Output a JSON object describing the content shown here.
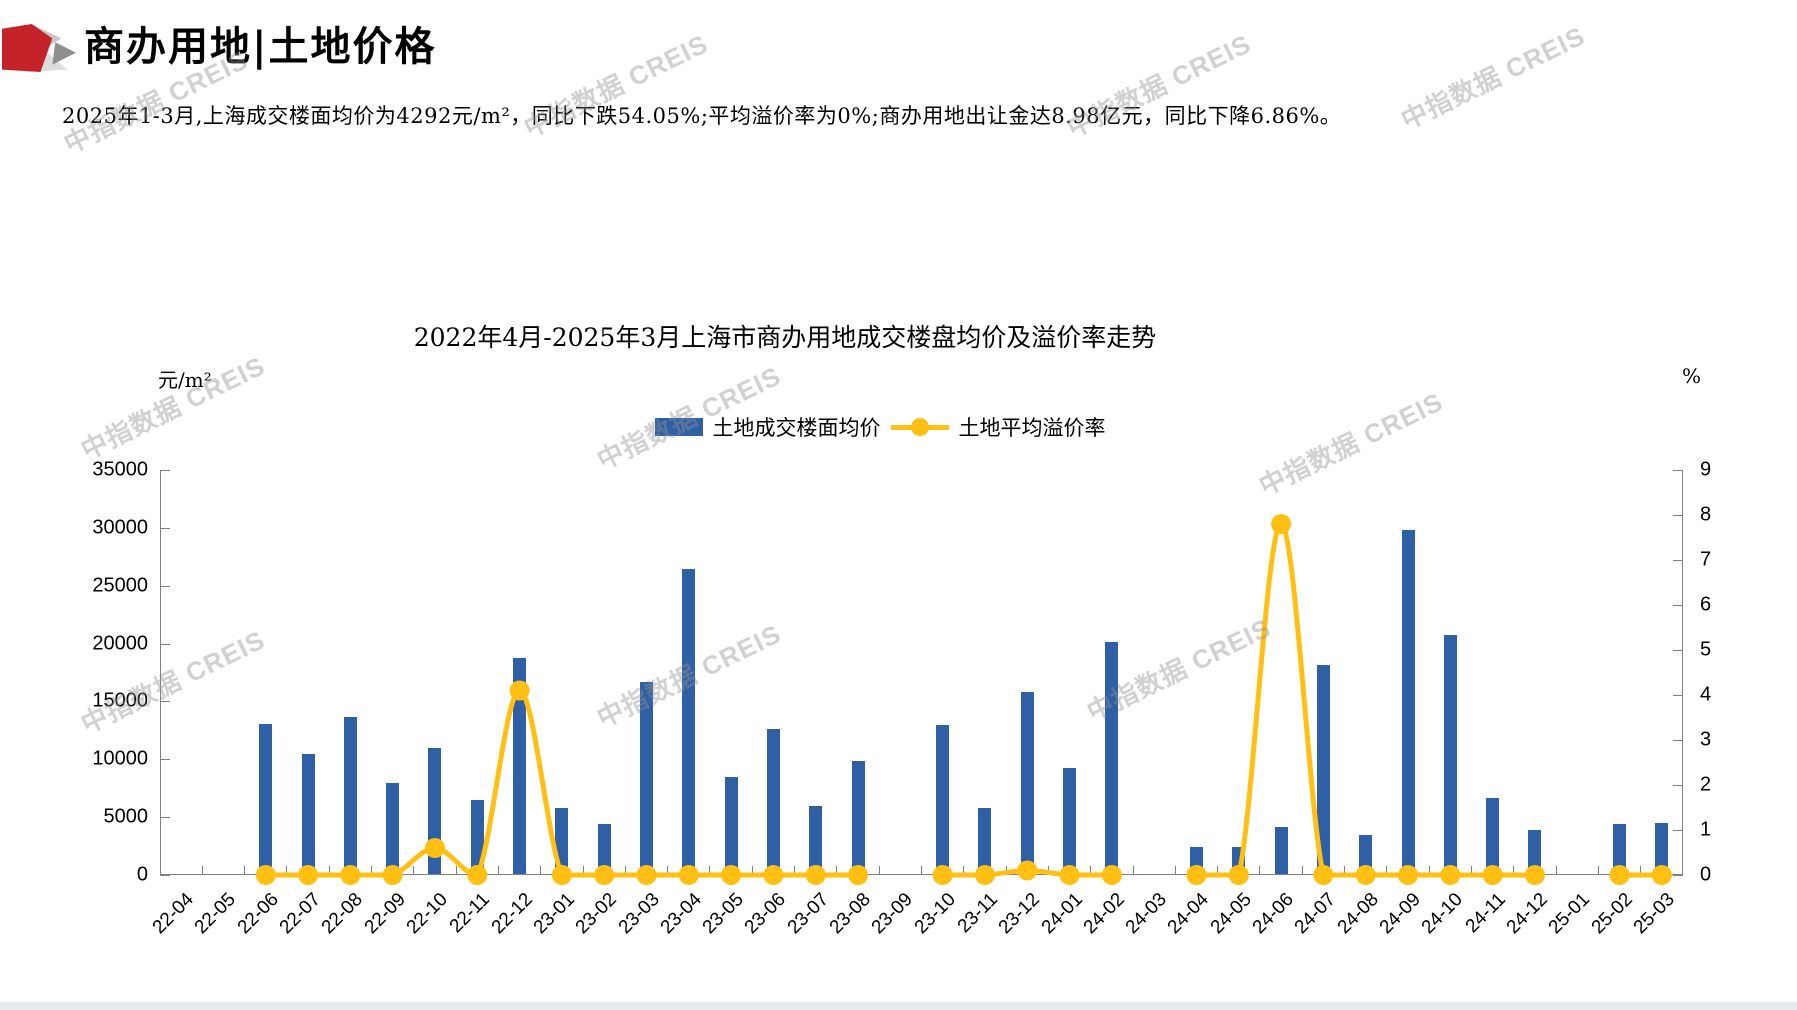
{
  "header": {
    "title": "商办用地|土地价格"
  },
  "summary": "2025年1-3月,上海成交楼面均价为4292元/m²，同比下跌54.05%;平均溢价率为0%;商办用地出让金达8.98亿元，同比下降6.86%。",
  "watermark": {
    "text": "中指数据 CREIS"
  },
  "colors": {
    "bar_blue": "#2f5fa5",
    "line_yellow": "#ffc013",
    "axis_gray": "#808080",
    "logo_red": "#c4232a"
  },
  "chart_data": {
    "type": "combo",
    "title": "2022年4月-2025年3月上海市商办用地成交楼盘均价及溢价率走势",
    "categories": [
      "22-04",
      "22-05",
      "22-06",
      "22-07",
      "22-08",
      "22-09",
      "22-10",
      "22-11",
      "22-12",
      "23-01",
      "23-02",
      "23-03",
      "23-04",
      "23-05",
      "23-06",
      "23-07",
      "23-08",
      "23-09",
      "23-10",
      "23-11",
      "23-12",
      "24-01",
      "24-02",
      "24-03",
      "24-04",
      "24-05",
      "24-06",
      "24-07",
      "24-08",
      "24-09",
      "24-10",
      "24-11",
      "24-12",
      "25-01",
      "25-02",
      "25-03"
    ],
    "series": [
      {
        "name": "土地成交楼面均价",
        "type": "bar",
        "axis": "left",
        "color": "#2f5fa5",
        "values": [
          null,
          null,
          13000,
          10400,
          13600,
          7900,
          10900,
          6400,
          18700,
          5700,
          4300,
          16600,
          26400,
          8400,
          12600,
          5900,
          9800,
          null,
          12900,
          5700,
          15800,
          9200,
          20100,
          null,
          2300,
          2300,
          4100,
          18100,
          3400,
          29800,
          20700,
          6600,
          3800,
          null,
          4300,
          4400
        ]
      },
      {
        "name": "土地平均溢价率",
        "type": "line",
        "axis": "right",
        "color": "#ffc013",
        "values": [
          null,
          null,
          0,
          0,
          0,
          0,
          0.6,
          0,
          4.1,
          0,
          0,
          0,
          0,
          0,
          0,
          0,
          0,
          null,
          0,
          0,
          0.1,
          0,
          0,
          null,
          0,
          0,
          7.8,
          0,
          0,
          0,
          0,
          0,
          0,
          null,
          0,
          0
        ]
      }
    ],
    "left_axis": {
      "unit": "元/m²",
      "min": 0,
      "max": 35000,
      "step": 5000,
      "tick_labels": [
        "0",
        "5000",
        "10000",
        "15000",
        "20000",
        "25000",
        "30000",
        "35000"
      ]
    },
    "right_axis": {
      "unit": "%",
      "min": 0,
      "max": 9,
      "step": 1,
      "tick_labels": [
        "0",
        "1",
        "2",
        "3",
        "4",
        "5",
        "6",
        "7",
        "8",
        "9"
      ]
    },
    "legend_position": "top-center",
    "grid": false
  }
}
